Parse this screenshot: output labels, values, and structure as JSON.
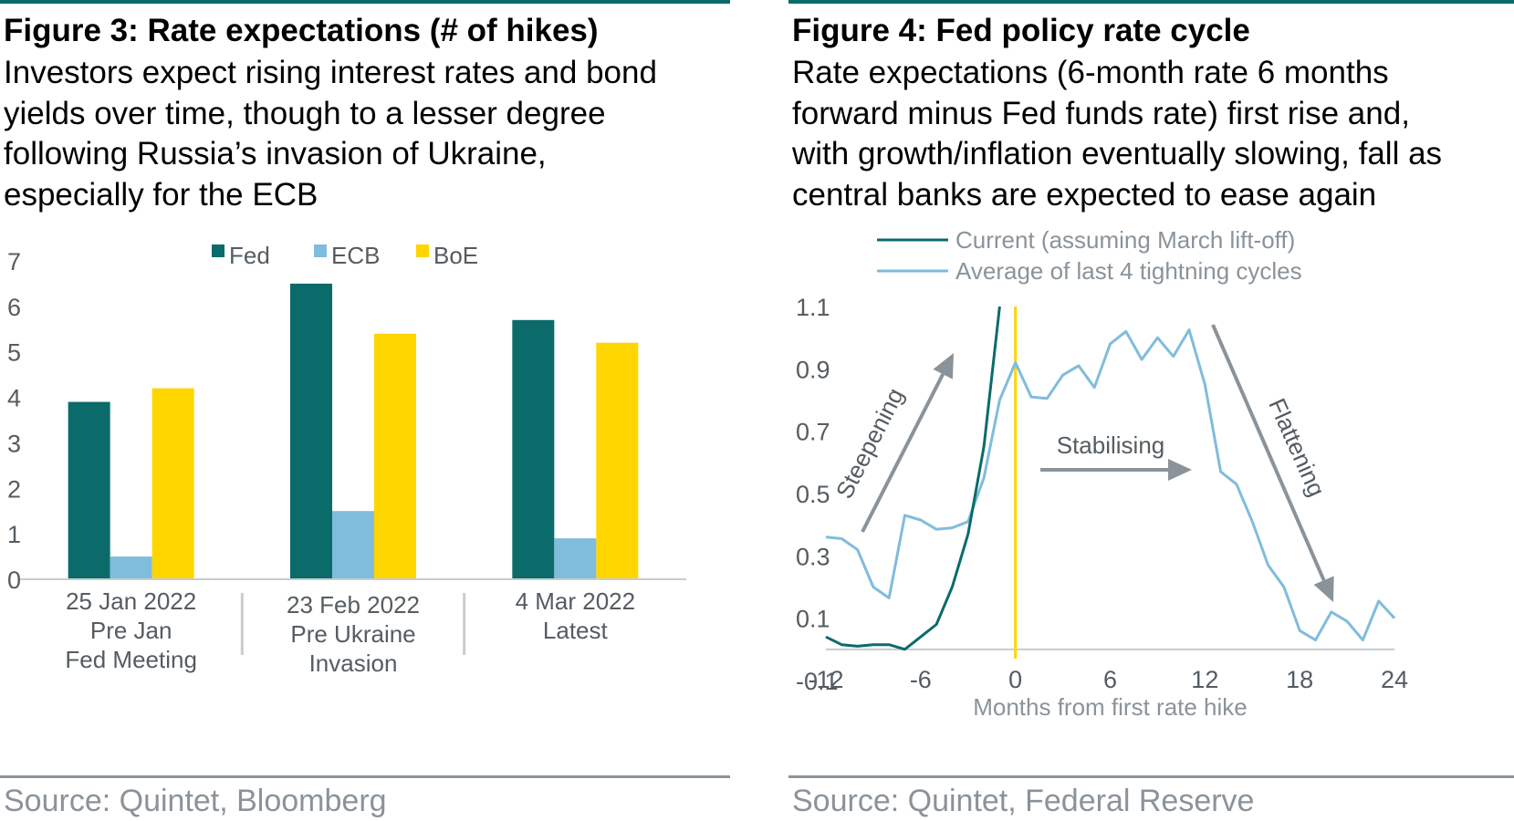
{
  "left": {
    "title": "Figure 3: Rate expectations (# of hikes)",
    "subtitle_lines": [
      "Investors expect rising interest rates and bond",
      "yields over time, though to a lesser degree",
      "following Russia’s invasion of Ukraine,",
      "especially for the ECB"
    ],
    "source": "Source: Quintet, Bloomberg"
  },
  "right": {
    "title": "Figure 4: Fed policy rate cycle",
    "subtitle_lines": [
      "Rate expectations (6-month rate 6 months",
      "forward minus Fed funds rate) first rise and,",
      "with growth/inflation eventually slowing, fall as",
      "central banks are expected to ease again"
    ],
    "source": "Source: Quintet, Federal Reserve"
  },
  "chart_data": [
    {
      "type": "bar",
      "title": "Figure 3: Rate expectations (# of hikes)",
      "categories": [
        [
          "25 Jan 2022",
          "Pre Jan",
          "Fed Meeting"
        ],
        [
          "23 Feb 2022",
          "Pre Ukraine",
          "Invasion"
        ],
        [
          "4 Mar 2022",
          "Latest"
        ]
      ],
      "series": [
        {
          "name": "Fed",
          "color": "#0b6b6b",
          "values": [
            3.9,
            6.5,
            5.7
          ]
        },
        {
          "name": "ECB",
          "color": "#80bcdc",
          "values": [
            0.5,
            1.5,
            0.9
          ]
        },
        {
          "name": "BoE",
          "color": "#ffd500",
          "values": [
            4.2,
            5.4,
            5.2
          ]
        }
      ],
      "ylim": [
        0,
        7
      ],
      "yticks": [
        0,
        1,
        2,
        3,
        4,
        5,
        6,
        7
      ],
      "grid": false,
      "legend_position": "top"
    },
    {
      "type": "line",
      "title": "Figure 4: Fed policy rate cycle",
      "xlabel": "Months from first rate hike",
      "xlim": [
        -12,
        24
      ],
      "ylim": [
        -0.1,
        1.1
      ],
      "xticks": [
        -12,
        -6,
        0,
        6,
        12,
        18,
        24
      ],
      "yticks": [
        -0.1,
        0.1,
        0.3,
        0.5,
        0.7,
        0.9,
        1.1
      ],
      "ytick_labels": [
        "-0.1",
        "0.1",
        "0.3",
        "0.5",
        "0.7",
        "0.9",
        "1.1"
      ],
      "series": [
        {
          "name": "Current (assuming March lift-off)",
          "color": "#0b6b6b",
          "x": [
            -12,
            -11,
            -10,
            -9,
            -8,
            -7,
            -6,
            -5,
            -4,
            -3,
            -2,
            -1
          ],
          "y": [
            0.04,
            0.015,
            0.01,
            0.015,
            0.015,
            0.0,
            0.04,
            0.08,
            0.2,
            0.37,
            0.65,
            1.1
          ]
        },
        {
          "name": "Average of last 4 tightning cycles",
          "color": "#80bcdc",
          "x": [
            -12,
            -11,
            -10,
            -9,
            -8,
            -7,
            -6,
            -5,
            -4,
            -3,
            -2,
            -1,
            0,
            1,
            2,
            3,
            4,
            5,
            6,
            7,
            8,
            9,
            10,
            11,
            12,
            13,
            14,
            15,
            16,
            17,
            18,
            19,
            20,
            21,
            22,
            23,
            24
          ],
          "y": [
            0.36,
            0.355,
            0.32,
            0.2,
            0.165,
            0.43,
            0.415,
            0.385,
            0.39,
            0.41,
            0.55,
            0.8,
            0.92,
            0.81,
            0.805,
            0.88,
            0.91,
            0.84,
            0.98,
            1.02,
            0.93,
            1.0,
            0.94,
            1.025,
            0.85,
            0.57,
            0.53,
            0.41,
            0.27,
            0.2,
            0.06,
            0.03,
            0.12,
            0.09,
            0.03,
            0.155,
            0.1
          ]
        }
      ],
      "marker_x": 0,
      "marker_color": "#ffd500",
      "annotations": [
        "Steepening",
        "Stabilising",
        "Flattening"
      ],
      "grid": false,
      "legend_position": "top"
    }
  ]
}
